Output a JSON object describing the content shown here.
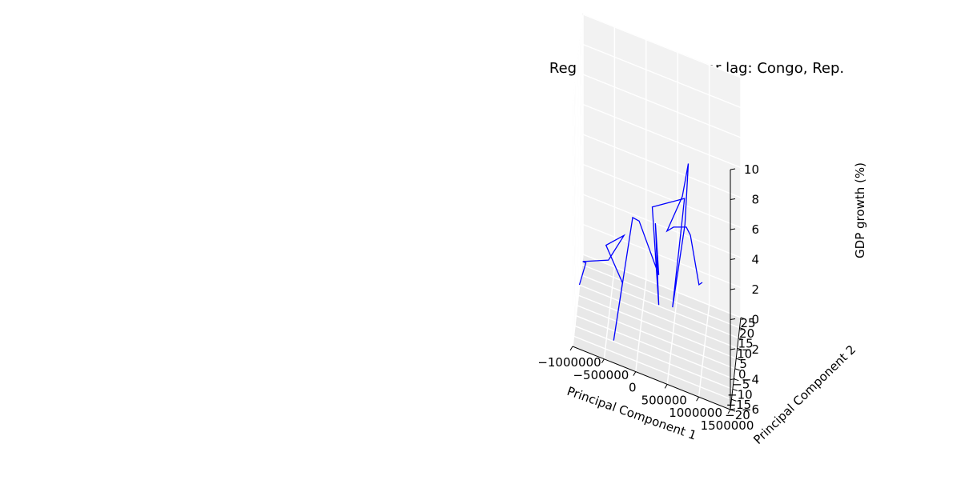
{
  "chart_data": {
    "type": "line",
    "projection": "3d",
    "title": "Regression for one-year lag: Congo, Rep.",
    "xlabel": "Principal Component 1",
    "ylabel": "Principal Component 2",
    "zlabel": "GDP growth (%)",
    "xlim": [
      -1000000,
      1500000
    ],
    "ylim": [
      -20,
      25
    ],
    "zlim": [
      -6,
      10
    ],
    "x_ticks": [
      "−1000000",
      "−500000",
      "0",
      "500000",
      "1000000",
      "1500000"
    ],
    "y_ticks": [
      "−20",
      "−15",
      "−10",
      "−5",
      "0",
      "5",
      "10",
      "15",
      "20",
      "25"
    ],
    "z_ticks": [
      "−6",
      "−4",
      "−2",
      "0",
      "2",
      "4",
      "6",
      "8",
      "10"
    ],
    "grid": true,
    "series": [
      {
        "color": "#0000ff",
        "points": [
          {
            "x": -900000,
            "y": -18,
            "z": -2.0
          },
          {
            "x": -800000,
            "y": -17,
            "z": -0.5
          },
          {
            "x": -850000,
            "y": -17,
            "z": -0.5
          },
          {
            "x": -450000,
            "y": -15,
            "z": 0.0
          },
          {
            "x": -200000,
            "y": -16,
            "z": 2.2
          },
          {
            "x": -500000,
            "y": -12,
            "z": 0.5
          },
          {
            "x": -250000,
            "y": -9,
            "z": -2.0
          },
          {
            "x": -400000,
            "y": -6,
            "z": -6.5
          },
          {
            "x": -100000,
            "y": -6,
            "z": 2.2
          },
          {
            "x": 0,
            "y": -5,
            "z": 2.0
          },
          {
            "x": 300000,
            "y": -2,
            "z": -1.5
          },
          {
            "x": 250000,
            "y": -3,
            "z": 2.0
          },
          {
            "x": 300000,
            "y": -2,
            "z": -3.5
          },
          {
            "x": 200000,
            "y": -3,
            "z": 3.0
          },
          {
            "x": 700000,
            "y": 0,
            "z": 4.0
          },
          {
            "x": 650000,
            "y": 2,
            "z": 2.0
          },
          {
            "x": 500000,
            "y": 3,
            "z": -4.0
          },
          {
            "x": 700000,
            "y": 2,
            "z": 2.0
          },
          {
            "x": 750000,
            "y": 3,
            "z": 6.0
          },
          {
            "x": 650000,
            "y": 4,
            "z": 3.5
          },
          {
            "x": 400000,
            "y": 6,
            "z": 0.5
          },
          {
            "x": 500000,
            "y": 7,
            "z": 0.8
          },
          {
            "x": 700000,
            "y": 8,
            "z": 1.0
          },
          {
            "x": 750000,
            "y": 12,
            "z": 0.0
          },
          {
            "x": 900000,
            "y": 8,
            "z": -2.5
          },
          {
            "x": 950000,
            "y": 9,
            "z": -2.4
          }
        ]
      }
    ]
  }
}
